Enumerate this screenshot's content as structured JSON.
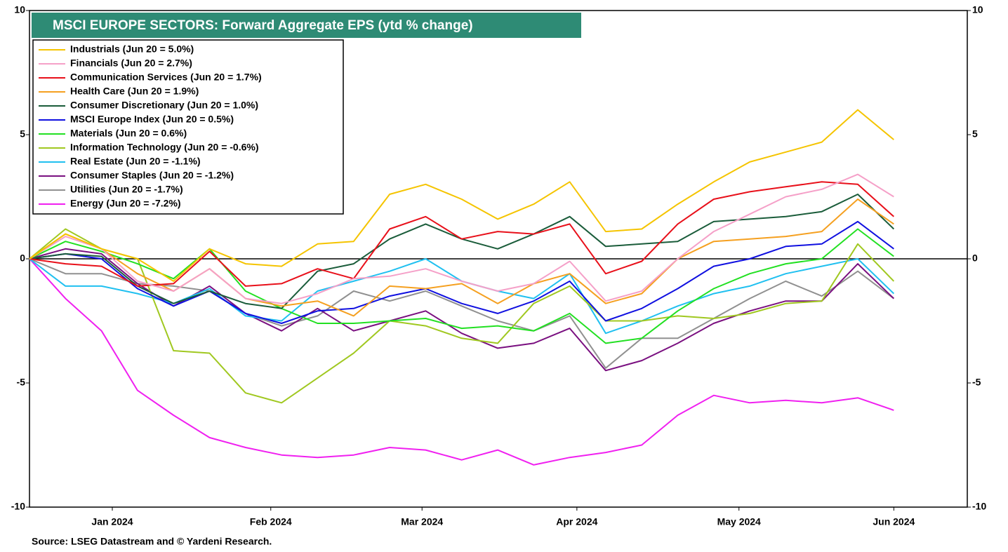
{
  "chart_data": {
    "type": "line",
    "title": "MSCI EUROPE SECTORS: Forward Aggregate EPS (ytd % change)",
    "source": "Source: LSEG Datastream and © Yardeni Research.",
    "x": [
      0,
      1,
      2,
      3,
      4,
      5,
      6,
      7,
      8,
      9,
      10,
      11,
      12,
      13,
      14,
      15,
      16,
      17,
      18,
      19,
      20,
      21,
      22,
      23,
      24
    ],
    "xlim": [
      0,
      26.04
    ],
    "xticks": [
      {
        "value": 2.3,
        "label": "Jan 2024"
      },
      {
        "value": 6.7,
        "label": "Feb 2024"
      },
      {
        "value": 10.9,
        "label": "Mar 2024"
      },
      {
        "value": 15.2,
        "label": "Apr 2024"
      },
      {
        "value": 19.7,
        "label": "May 2024"
      },
      {
        "value": 24.0,
        "label": "Jun 2024"
      }
    ],
    "ylim": [
      -10,
      10
    ],
    "yticks": [
      10,
      5,
      0,
      -5,
      -10
    ],
    "y2lim": [
      -10,
      10
    ],
    "y2ticks": [
      10,
      5,
      0,
      -5,
      -10
    ],
    "zero_line": true,
    "grid": false,
    "legend": "upper left",
    "series": [
      {
        "name": "Industrials (Jun 20 = 5.0%)",
        "color": "#f5c400",
        "values": [
          0,
          1.0,
          0.4,
          0.0,
          -0.9,
          0.4,
          -0.2,
          -0.3,
          0.6,
          0.7,
          2.6,
          3.0,
          2.4,
          1.6,
          2.2,
          3.1,
          1.1,
          1.2,
          2.2,
          3.1,
          3.9,
          4.3,
          4.7,
          6.0,
          4.8
        ]
      },
      {
        "name": "Financials (Jun 20 = 2.7%)",
        "color": "#f5a0c8",
        "values": [
          0,
          0.9,
          0.4,
          -0.9,
          -1.3,
          -0.4,
          -1.6,
          -1.8,
          -1.4,
          -0.8,
          -0.7,
          -0.4,
          -0.9,
          -1.3,
          -1.0,
          -0.1,
          -1.7,
          -1.3,
          0.0,
          1.1,
          1.8,
          2.5,
          2.8,
          3.4,
          2.5
        ]
      },
      {
        "name": "Communication Services (Jun 20 = 1.7%)",
        "color": "#e8101a",
        "values": [
          0,
          -0.2,
          -0.3,
          -1.1,
          -1.0,
          0.3,
          -1.1,
          -1.0,
          -0.4,
          -0.8,
          1.2,
          1.7,
          0.8,
          1.1,
          1.0,
          1.4,
          -0.6,
          -0.1,
          1.4,
          2.4,
          2.7,
          2.9,
          3.1,
          3.0,
          1.7
        ]
      },
      {
        "name": "Health Care (Jun 20 = 1.9%)",
        "color": "#f5a020",
        "values": [
          0,
          1.0,
          0.4,
          -0.6,
          -1.3,
          -0.4,
          -1.6,
          -1.9,
          -1.7,
          -2.3,
          -1.1,
          -1.2,
          -1.0,
          -1.8,
          -1.0,
          -0.6,
          -1.8,
          -1.4,
          0.0,
          0.7,
          0.8,
          0.9,
          1.1,
          2.4,
          1.4
        ]
      },
      {
        "name": "Consumer Discretionary (Jun 20 = 1.0%)",
        "color": "#1a5c3a",
        "values": [
          0,
          0.2,
          0.1,
          -1.1,
          -1.8,
          -1.3,
          -1.8,
          -2.0,
          -0.5,
          -0.2,
          0.8,
          1.4,
          0.8,
          0.4,
          1.0,
          1.7,
          0.5,
          0.6,
          0.7,
          1.5,
          1.6,
          1.7,
          1.9,
          2.6,
          1.2
        ]
      },
      {
        "name": "MSCI Europe Index (Jun 20 = 0.5%)",
        "color": "#1010e0",
        "values": [
          0,
          0.2,
          0.0,
          -1.2,
          -1.9,
          -1.3,
          -2.2,
          -2.6,
          -2.1,
          -2.0,
          -1.5,
          -1.2,
          -1.8,
          -2.2,
          -1.7,
          -0.9,
          -2.5,
          -2.0,
          -1.2,
          -0.3,
          0.0,
          0.5,
          0.6,
          1.5,
          0.4
        ]
      },
      {
        "name": "Materials (Jun 20 = 0.6%)",
        "color": "#22e022",
        "values": [
          0,
          0.7,
          0.3,
          -0.2,
          -0.8,
          0.4,
          -1.3,
          -2.0,
          -2.6,
          -2.6,
          -2.5,
          -2.4,
          -2.8,
          -2.7,
          -2.9,
          -2.2,
          -3.4,
          -3.2,
          -2.1,
          -1.2,
          -0.6,
          -0.2,
          0.0,
          1.2,
          0.1
        ]
      },
      {
        "name": "Information Technology (Jun 20 = -0.6%)",
        "color": "#a0c820",
        "values": [
          0,
          1.2,
          0.4,
          0.0,
          -3.7,
          -3.8,
          -5.4,
          -5.8,
          -4.8,
          -3.8,
          -2.5,
          -2.7,
          -3.2,
          -3.4,
          -1.8,
          -1.1,
          -2.5,
          -2.5,
          -2.3,
          -2.4,
          -2.2,
          -1.8,
          -1.7,
          0.6,
          -0.9
        ]
      },
      {
        "name": "Real Estate (Jun 20 = -1.1%)",
        "color": "#20c0f0",
        "values": [
          0,
          -1.1,
          -1.1,
          -1.4,
          -1.8,
          -1.2,
          -2.3,
          -2.5,
          -1.3,
          -0.9,
          -0.5,
          0.0,
          -0.9,
          -1.3,
          -1.6,
          -0.6,
          -3.0,
          -2.5,
          -1.9,
          -1.4,
          -1.1,
          -0.6,
          -0.3,
          0.0,
          -1.4
        ]
      },
      {
        "name": "Consumer Staples (Jun 20 = -1.2%)",
        "color": "#7a1080",
        "values": [
          0,
          0.4,
          0.2,
          -1.0,
          -1.9,
          -1.1,
          -2.2,
          -2.9,
          -2.0,
          -2.9,
          -2.5,
          -2.1,
          -3.0,
          -3.6,
          -3.4,
          -2.8,
          -4.5,
          -4.1,
          -3.4,
          -2.6,
          -2.1,
          -1.7,
          -1.7,
          -0.2,
          -1.6
        ]
      },
      {
        "name": "Utilities (Jun 20 = -1.7%)",
        "color": "#909090",
        "values": [
          0,
          -0.6,
          -0.6,
          -1.0,
          -1.1,
          -1.3,
          -2.2,
          -2.7,
          -2.3,
          -1.3,
          -1.7,
          -1.3,
          -1.9,
          -2.5,
          -2.9,
          -2.3,
          -4.4,
          -3.2,
          -3.2,
          -2.4,
          -1.6,
          -0.9,
          -1.5,
          -0.5,
          -1.6
        ]
      },
      {
        "name": "Energy (Jun 20 = -7.2%)",
        "color": "#f020f0",
        "values": [
          0,
          -1.6,
          -2.9,
          -5.3,
          -6.3,
          -7.2,
          -7.6,
          -7.9,
          -8.0,
          -7.9,
          -7.6,
          -7.7,
          -8.1,
          -7.7,
          -8.3,
          -8.0,
          -7.8,
          -7.5,
          -6.3,
          -5.5,
          -5.8,
          -5.7,
          -5.8,
          -5.6,
          -6.1
        ]
      }
    ]
  }
}
